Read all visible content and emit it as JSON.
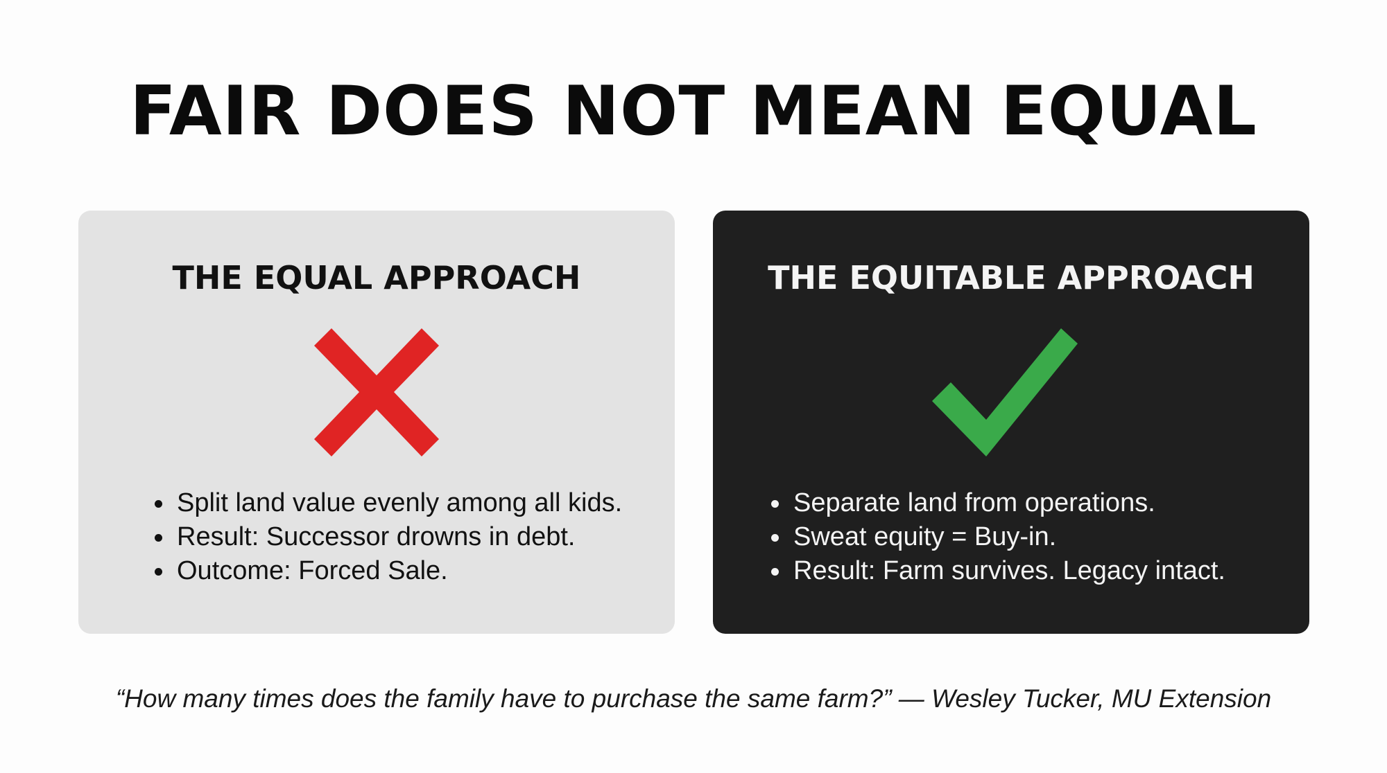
{
  "title": "FAIR DOES NOT MEAN EQUAL",
  "panels": {
    "equal": {
      "heading": "THE EQUAL APPROACH",
      "icon": "cross-icon",
      "icon_color": "#e02424",
      "bg_color": "#e3e3e3",
      "bullets": [
        "Split land value evenly among all kids.",
        "Result: Successor drowns in debt.",
        "Outcome: Forced Sale."
      ]
    },
    "equitable": {
      "heading": "THE EQUITABLE APPROACH",
      "icon": "checkmark-icon",
      "icon_color": "#3aaa4a",
      "bg_color": "#1f1f1f",
      "bullets": [
        "Separate land from operations.",
        "Sweat equity = Buy-in.",
        "Result: Farm survives. Legacy intact."
      ]
    }
  },
  "quote": "“How many times does the family have to purchase the same farm?” — Wesley Tucker, MU Extension"
}
